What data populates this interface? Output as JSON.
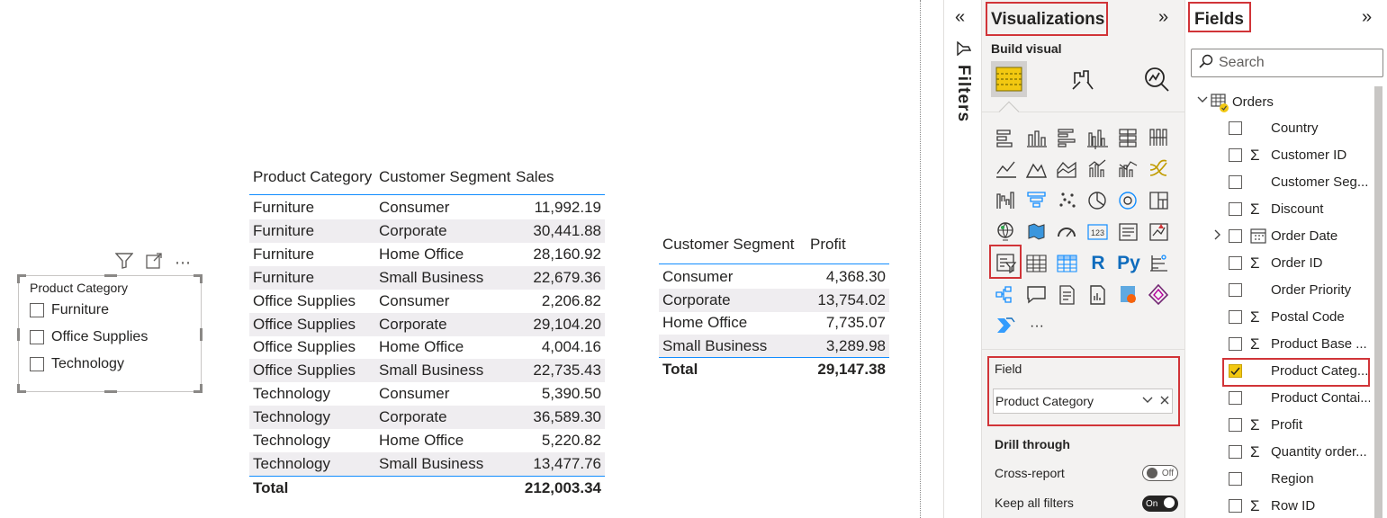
{
  "slicer": {
    "title": "Product Category",
    "items": [
      "Furniture",
      "Office Supplies",
      "Technology"
    ],
    "toolbar_more": "⋯"
  },
  "sales_table": {
    "headers": [
      "Product Category",
      "Customer Segment",
      "Sales"
    ],
    "rows": [
      [
        "Furniture",
        "Consumer",
        "11,992.19"
      ],
      [
        "Furniture",
        "Corporate",
        "30,441.88"
      ],
      [
        "Furniture",
        "Home Office",
        "28,160.92"
      ],
      [
        "Furniture",
        "Small Business",
        "22,679.36"
      ],
      [
        "Office Supplies",
        "Consumer",
        "2,206.82"
      ],
      [
        "Office Supplies",
        "Corporate",
        "29,104.20"
      ],
      [
        "Office Supplies",
        "Home Office",
        "4,004.16"
      ],
      [
        "Office Supplies",
        "Small Business",
        "22,735.43"
      ],
      [
        "Technology",
        "Consumer",
        "5,390.50"
      ],
      [
        "Technology",
        "Corporate",
        "36,589.30"
      ],
      [
        "Technology",
        "Home Office",
        "5,220.82"
      ],
      [
        "Technology",
        "Small Business",
        "13,477.76"
      ]
    ],
    "total_label": "Total",
    "total_value": "212,003.34"
  },
  "profit_table": {
    "headers": [
      "Customer Segment",
      "Profit"
    ],
    "rows": [
      [
        "Consumer",
        "4,368.30"
      ],
      [
        "Corporate",
        "13,754.02"
      ],
      [
        "Home Office",
        "7,735.07"
      ],
      [
        "Small Business",
        "3,289.98"
      ]
    ],
    "total_label": "Total",
    "total_value": "29,147.38"
  },
  "filters_pane": {
    "collapse_glyph": "«",
    "label": "Filters"
  },
  "viz_pane": {
    "title": "Visualizations",
    "expand_glyph": "»",
    "build_visual": "Build visual",
    "more_visuals": "···",
    "field_well_label": "Field",
    "field_value": "Product Category",
    "drill_through": "Drill through",
    "cross_report": "Cross-report",
    "cross_report_state": "Off",
    "keep_all_filters": "Keep all filters",
    "keep_all_filters_state": "On",
    "gallery_icons": [
      "stacked-bar-icon",
      "stacked-column-icon",
      "clustered-bar-icon",
      "clustered-column-icon",
      "100-stacked-bar-icon",
      "100-stacked-column-icon",
      "line-chart-icon",
      "area-chart-icon",
      "stacked-area-icon",
      "line-column-icon",
      "line-clustered-column-icon",
      "ribbon-chart-icon",
      "waterfall-icon",
      "funnel-icon",
      "scatter-icon",
      "pie-chart-icon",
      "donut-chart-icon",
      "treemap-icon",
      "map-icon",
      "filled-map-icon",
      "gauge-icon",
      "card-icon",
      "multi-row-card-icon",
      "kpi-icon",
      "slicer-icon",
      "table-icon",
      "matrix-icon",
      "r-visual-icon",
      "python-visual-icon",
      "key-influencers-icon",
      "decomposition-tree-icon",
      "qa-icon",
      "smart-narrative-icon",
      "paginated-report-icon",
      "arcgis-icon",
      "power-apps-icon",
      "power-automate-icon"
    ],
    "r_text": "R",
    "py_text": "Py",
    "card_text": "123"
  },
  "fields_pane": {
    "title": "Fields",
    "expand_glyph": "»",
    "search_placeholder": "Search",
    "table_name": "Orders",
    "fields": [
      {
        "name": "Country",
        "sigma": false,
        "checked": false,
        "expandable": false
      },
      {
        "name": "Customer ID",
        "sigma": true,
        "checked": false,
        "expandable": false
      },
      {
        "name": "Customer Seg...",
        "sigma": false,
        "checked": false,
        "expandable": false
      },
      {
        "name": "Discount",
        "sigma": true,
        "checked": false,
        "expandable": false
      },
      {
        "name": "Order Date",
        "sigma": false,
        "checked": false,
        "expandable": true
      },
      {
        "name": "Order ID",
        "sigma": true,
        "checked": false,
        "expandable": false
      },
      {
        "name": "Order Priority",
        "sigma": false,
        "checked": false,
        "expandable": false
      },
      {
        "name": "Postal Code",
        "sigma": true,
        "checked": false,
        "expandable": false
      },
      {
        "name": "Product Base ...",
        "sigma": true,
        "checked": false,
        "expandable": false
      },
      {
        "name": "Product Categ...",
        "sigma": false,
        "checked": true,
        "expandable": false
      },
      {
        "name": "Product Contai...",
        "sigma": false,
        "checked": false,
        "expandable": false
      },
      {
        "name": "Profit",
        "sigma": true,
        "checked": false,
        "expandable": false
      },
      {
        "name": "Quantity order...",
        "sigma": true,
        "checked": false,
        "expandable": false
      },
      {
        "name": "Region",
        "sigma": false,
        "checked": false,
        "expandable": false
      },
      {
        "name": "Row ID",
        "sigma": true,
        "checked": false,
        "expandable": false
      }
    ]
  },
  "colors": {
    "accent_blue": "#118dff",
    "highlight_red": "#d13438",
    "selected_yellow": "#f2c811",
    "row_band": "#efedf0"
  }
}
